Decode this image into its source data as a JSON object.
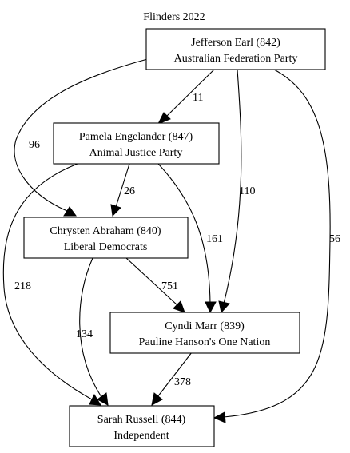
{
  "title": "Flinders 2022",
  "nodes": {
    "earl": {
      "line1": "Jefferson Earl (842)",
      "line2": "Australian Federation Party"
    },
    "engelander": {
      "line1": "Pamela Engelander (847)",
      "line2": "Animal Justice Party"
    },
    "abraham": {
      "line1": "Chrysten Abraham (840)",
      "line2": "Liberal Democrats"
    },
    "marr": {
      "line1": "Cyndi Marr (839)",
      "line2": "Pauline Hanson's One Nation"
    },
    "russell": {
      "line1": "Sarah Russell (844)",
      "line2": "Independent"
    }
  },
  "edges": {
    "earl_engelander": {
      "from": "earl",
      "to": "engelander",
      "label": "11"
    },
    "earl_abraham": {
      "from": "earl",
      "to": "abraham",
      "label": "96"
    },
    "earl_marr": {
      "from": "earl",
      "to": "marr",
      "label": "110"
    },
    "earl_russell": {
      "from": "earl",
      "to": "russell",
      "label": "56"
    },
    "engelander_abraham": {
      "from": "engelander",
      "to": "abraham",
      "label": "26"
    },
    "engelander_marr": {
      "from": "engelander",
      "to": "marr",
      "label": "161"
    },
    "engelander_russell": {
      "from": "engelander",
      "to": "russell",
      "label": "218"
    },
    "abraham_marr": {
      "from": "abraham",
      "to": "marr",
      "label": "751"
    },
    "abraham_russell": {
      "from": "abraham",
      "to": "russell",
      "label": "134"
    },
    "marr_russell": {
      "from": "marr",
      "to": "russell",
      "label": "378"
    }
  }
}
